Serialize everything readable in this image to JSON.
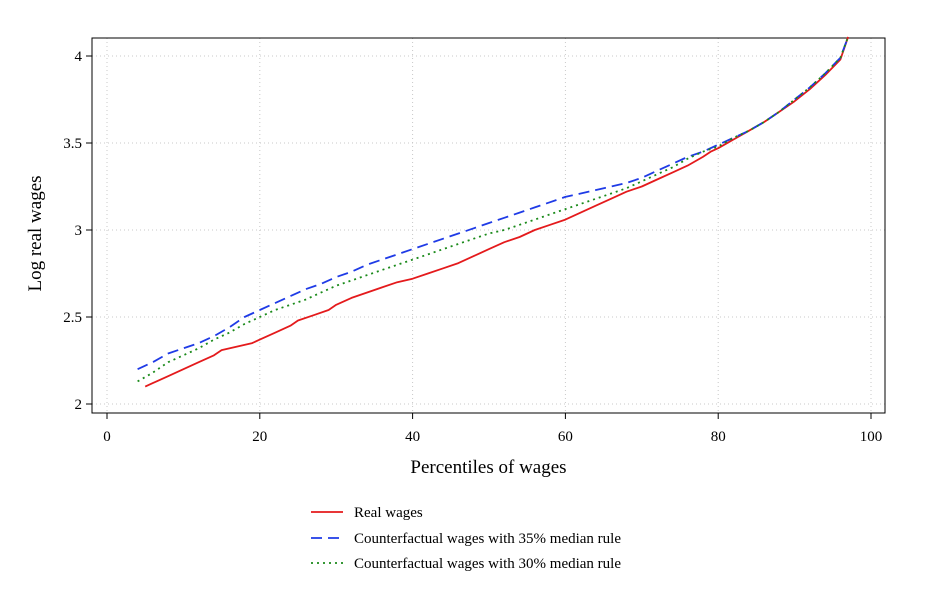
{
  "chart_data": {
    "type": "line",
    "xlabel": "Percentiles of wages",
    "ylabel": "Log real wages",
    "xlim": [
      0,
      100
    ],
    "ylim": [
      2,
      4.1
    ],
    "xticks": [
      "0",
      "20",
      "40",
      "60",
      "80",
      "100"
    ],
    "yticks": [
      "2",
      "2.5",
      "3",
      "3.5",
      "4"
    ],
    "grid": "dotted",
    "legend_position": "bottom",
    "series": [
      {
        "name": "Real wages",
        "color": "#e41a1c",
        "style": "solid",
        "x": [
          5,
          6,
          8,
          10,
          12,
          14,
          15,
          17,
          19,
          20,
          22,
          24,
          25,
          27,
          29,
          30,
          32,
          34,
          36,
          38,
          40,
          42,
          44,
          46,
          48,
          50,
          52,
          54,
          56,
          58,
          60,
          62,
          64,
          66,
          68,
          70,
          72,
          74,
          76,
          78,
          79,
          80,
          82,
          84,
          86,
          88,
          90,
          92,
          94,
          96,
          97
        ],
        "values": [
          2.1,
          2.12,
          2.16,
          2.2,
          2.24,
          2.28,
          2.31,
          2.33,
          2.35,
          2.37,
          2.41,
          2.45,
          2.48,
          2.51,
          2.54,
          2.57,
          2.61,
          2.64,
          2.67,
          2.7,
          2.72,
          2.75,
          2.78,
          2.81,
          2.85,
          2.89,
          2.93,
          2.96,
          3.0,
          3.03,
          3.06,
          3.1,
          3.14,
          3.18,
          3.22,
          3.25,
          3.29,
          3.33,
          3.37,
          3.42,
          3.45,
          3.47,
          3.52,
          3.57,
          3.62,
          3.68,
          3.74,
          3.81,
          3.89,
          3.98,
          4.11
        ]
      },
      {
        "name": "Counterfactual wages with 35% median rule",
        "color": "#1f3be6",
        "style": "dashed",
        "x": [
          4,
          6,
          8,
          10,
          12,
          14,
          16,
          18,
          20,
          22,
          24,
          26,
          28,
          30,
          32,
          34,
          36,
          38,
          40,
          42,
          44,
          46,
          48,
          50,
          52,
          54,
          56,
          58,
          60,
          62,
          64,
          66,
          68,
          70,
          72,
          74,
          76,
          78,
          80,
          82,
          84,
          86,
          88,
          90,
          92,
          94,
          96,
          97
        ],
        "values": [
          2.2,
          2.24,
          2.29,
          2.32,
          2.35,
          2.39,
          2.44,
          2.5,
          2.54,
          2.58,
          2.62,
          2.66,
          2.69,
          2.73,
          2.76,
          2.8,
          2.83,
          2.86,
          2.89,
          2.92,
          2.95,
          2.98,
          3.01,
          3.04,
          3.07,
          3.1,
          3.13,
          3.16,
          3.19,
          3.21,
          3.23,
          3.25,
          3.27,
          3.3,
          3.34,
          3.38,
          3.42,
          3.45,
          3.49,
          3.53,
          3.57,
          3.62,
          3.68,
          3.75,
          3.82,
          3.9,
          3.99,
          4.11
        ]
      },
      {
        "name": "Counterfactual wages with 30% median rule",
        "color": "#1a8a1a",
        "style": "dotted",
        "x": [
          4,
          6,
          8,
          10,
          12,
          14,
          16,
          18,
          20,
          22,
          24,
          26,
          28,
          30,
          32,
          34,
          36,
          38,
          40,
          42,
          44,
          46,
          48,
          50,
          52,
          54,
          56,
          58,
          60,
          62,
          64,
          66,
          68,
          70,
          72,
          74,
          76,
          78,
          80,
          82,
          84,
          86,
          88,
          90,
          92,
          94,
          96,
          97
        ],
        "values": [
          2.13,
          2.18,
          2.24,
          2.28,
          2.32,
          2.37,
          2.41,
          2.46,
          2.5,
          2.54,
          2.57,
          2.6,
          2.64,
          2.68,
          2.71,
          2.74,
          2.77,
          2.8,
          2.83,
          2.86,
          2.89,
          2.92,
          2.95,
          2.98,
          3.0,
          3.03,
          3.06,
          3.09,
          3.12,
          3.15,
          3.18,
          3.21,
          3.24,
          3.28,
          3.32,
          3.36,
          3.41,
          3.45,
          3.48,
          3.53,
          3.57,
          3.62,
          3.68,
          3.75,
          3.82,
          3.9,
          3.99,
          4.11
        ]
      }
    ]
  }
}
